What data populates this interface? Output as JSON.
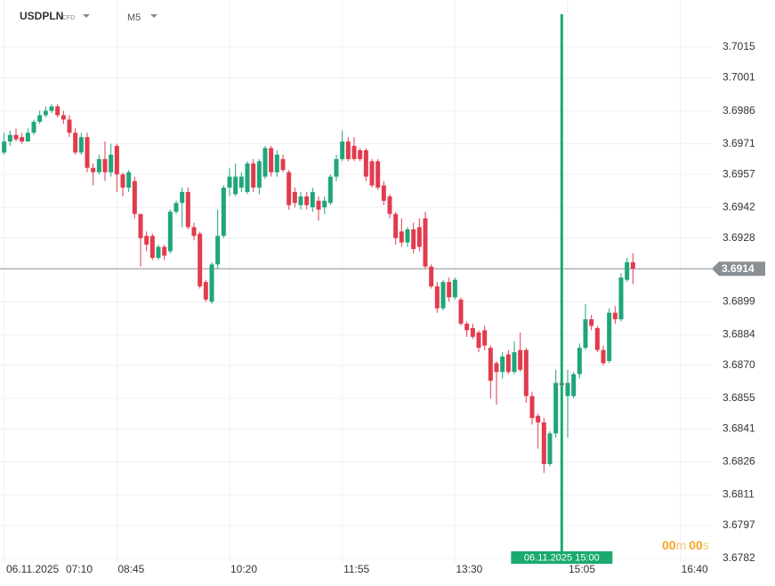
{
  "chart_data": {
    "type": "candlestick",
    "symbol": "USDPLN",
    "instrument_type": "CFD",
    "timeframe": "M5",
    "date_label": "06.11.2025",
    "x": [
      "07:10",
      "07:15",
      "07:20",
      "07:25",
      "07:30",
      "07:35",
      "07:40",
      "07:45",
      "07:50",
      "07:55",
      "08:00",
      "08:05",
      "08:10",
      "08:15",
      "08:20",
      "08:25",
      "08:30",
      "08:35",
      "08:40",
      "08:45",
      "08:50",
      "08:55",
      "09:00",
      "09:05",
      "09:10",
      "09:15",
      "09:20",
      "09:25",
      "09:30",
      "09:35",
      "09:40",
      "09:45",
      "09:50",
      "09:55",
      "10:00",
      "10:05",
      "10:10",
      "10:15",
      "10:20",
      "10:25",
      "10:30",
      "10:35",
      "10:40",
      "10:45",
      "10:50",
      "10:55",
      "11:00",
      "11:05",
      "11:10",
      "11:15",
      "11:20",
      "11:25",
      "11:30",
      "11:35",
      "11:40",
      "11:45",
      "11:50",
      "11:55",
      "12:00",
      "12:05",
      "12:10",
      "12:15",
      "12:20",
      "12:25",
      "12:30",
      "12:35",
      "12:40",
      "12:45",
      "12:50",
      "12:55",
      "13:00",
      "13:05",
      "13:10",
      "13:15",
      "13:20",
      "13:25",
      "13:30",
      "13:35",
      "13:40",
      "13:45",
      "13:50",
      "13:55",
      "14:00",
      "14:05",
      "14:10",
      "14:15",
      "14:20",
      "14:25",
      "14:30",
      "14:35",
      "14:40",
      "14:45",
      "14:50",
      "14:55",
      "15:00",
      "15:05",
      "15:10",
      "15:15",
      "15:20",
      "15:25",
      "15:30",
      "15:35",
      "15:40",
      "15:45",
      "15:50",
      "15:55",
      "16:00"
    ],
    "open": [
      3.6967,
      3.6972,
      3.6975,
      3.6974,
      3.6972,
      3.6976,
      3.6981,
      3.6984,
      3.6986,
      3.6988,
      3.6984,
      3.6982,
      3.6976,
      3.6967,
      3.6974,
      3.696,
      3.6958,
      3.6964,
      3.6958,
      3.697,
      3.6957,
      3.6951,
      3.6954,
      3.6939,
      3.6929,
      3.6929,
      3.6919,
      3.6924,
      3.6922,
      3.694,
      3.6944,
      3.6949,
      3.6933,
      3.693,
      3.6908,
      3.6899,
      3.6916,
      3.6929,
      3.6951,
      3.6948,
      3.6951,
      3.6949,
      3.6962,
      3.6951,
      3.6956,
      3.6969,
      3.6958,
      3.6964,
      3.6958,
      3.6949,
      3.6943,
      3.6947,
      3.6942,
      3.6945,
      3.6942,
      3.6944,
      3.6956,
      3.6964,
      3.6972,
      3.697,
      3.6968,
      3.6968,
      3.6963,
      3.6963,
      3.6952,
      3.6947,
      3.6939,
      3.6931,
      3.6926,
      3.6932,
      3.6933,
      3.6937,
      3.6915,
      3.6906,
      3.6896,
      3.6908,
      3.6901,
      3.69,
      3.6889,
      3.6887,
      3.6885,
      3.6886,
      3.6878,
      3.6871,
      3.6867,
      3.6875,
      3.6867,
      3.6877,
      3.6877,
      3.6856,
      3.6847,
      3.6844,
      3.6825,
      3.6839,
      3.6862,
      3.6856,
      3.6856,
      3.6866,
      3.6878,
      3.6891,
      3.6887,
      3.6877,
      3.6872,
      3.6894,
      3.6891,
      3.6909,
      3.6917
    ],
    "high": [
      3.6976,
      3.6977,
      3.6978,
      3.6976,
      3.6978,
      3.6982,
      3.6986,
      3.6988,
      3.6989,
      3.6989,
      3.6986,
      3.6984,
      3.6978,
      3.6976,
      3.6976,
      3.6962,
      3.6966,
      3.6972,
      3.6971,
      3.6971,
      3.6958,
      3.6959,
      3.6956,
      3.6939,
      3.6931,
      3.693,
      3.6925,
      3.6925,
      3.6941,
      3.6945,
      3.6951,
      3.6951,
      3.6935,
      3.6931,
      3.6909,
      3.6917,
      3.6941,
      3.6952,
      3.696,
      3.6962,
      3.6958,
      3.6963,
      3.6964,
      3.6964,
      3.697,
      3.697,
      3.6968,
      3.6966,
      3.6959,
      3.6951,
      3.6949,
      3.6949,
      3.6951,
      3.6947,
      3.6947,
      3.6957,
      3.6966,
      3.6977,
      3.6974,
      3.6974,
      3.6969,
      3.6969,
      3.6964,
      3.6964,
      3.6954,
      3.6948,
      3.694,
      3.6937,
      3.6933,
      3.6935,
      3.6937,
      3.694,
      3.6916,
      3.6908,
      3.6909,
      3.691,
      3.691,
      3.6901,
      3.689,
      3.6889,
      3.6886,
      3.6888,
      3.6879,
      3.6872,
      3.6876,
      3.6877,
      3.6881,
      3.6885,
      3.6878,
      3.6858,
      3.6848,
      3.6846,
      3.684,
      3.6868,
      3.6863,
      3.6868,
      3.6867,
      3.688,
      3.6898,
      3.6893,
      3.6888,
      3.6879,
      3.6896,
      3.6897,
      3.6912,
      3.6919,
      3.6921
    ],
    "low": [
      3.6966,
      3.697,
      3.6972,
      3.6971,
      3.6972,
      3.6975,
      3.698,
      3.6983,
      3.6985,
      3.6983,
      3.698,
      3.6974,
      3.6966,
      3.6966,
      3.6958,
      3.6952,
      3.6957,
      3.6954,
      3.6956,
      3.6949,
      3.6947,
      3.6949,
      3.6937,
      3.6915,
      3.6922,
      3.6918,
      3.6918,
      3.6918,
      3.6921,
      3.6939,
      3.6933,
      3.6932,
      3.6927,
      3.6905,
      3.6899,
      3.6898,
      3.6914,
      3.6928,
      3.6947,
      3.6947,
      3.6949,
      3.6948,
      3.6949,
      3.6948,
      3.6955,
      3.6956,
      3.6956,
      3.6958,
      3.6941,
      3.6942,
      3.6941,
      3.6941,
      3.694,
      3.6936,
      3.6939,
      3.6943,
      3.6954,
      3.6963,
      3.6963,
      3.6963,
      3.6963,
      3.6954,
      3.6951,
      3.695,
      3.6943,
      3.6937,
      3.6925,
      3.6924,
      3.6924,
      3.6921,
      3.6922,
      3.6914,
      3.6905,
      3.6894,
      3.6895,
      3.6899,
      3.69,
      3.6888,
      3.6883,
      3.6882,
      3.6876,
      3.6877,
      3.6855,
      3.6852,
      3.6864,
      3.6866,
      3.6866,
      3.6867,
      3.6853,
      3.6843,
      3.6832,
      3.6821,
      3.6824,
      3.6837,
      3.686,
      3.6837,
      3.6855,
      3.6864,
      3.6877,
      3.6886,
      3.6876,
      3.687,
      3.6871,
      3.6889,
      3.689,
      3.6908,
      3.6907
    ],
    "close": [
      3.6972,
      3.6975,
      3.6973,
      3.6972,
      3.6976,
      3.6981,
      3.6984,
      3.6986,
      3.6988,
      3.6984,
      3.6982,
      3.6976,
      3.6967,
      3.6974,
      3.696,
      3.6958,
      3.6964,
      3.6958,
      3.6966,
      3.6957,
      3.6951,
      3.6958,
      3.6939,
      3.6928,
      3.6925,
      3.6919,
      3.6924,
      3.692,
      3.694,
      3.6944,
      3.6949,
      3.6933,
      3.6929,
      3.6906,
      3.69,
      3.6916,
      3.6929,
      3.6951,
      3.6956,
      3.6956,
      3.6956,
      3.6962,
      3.6951,
      3.6963,
      3.6969,
      3.6958,
      3.6966,
      3.6959,
      3.6943,
      3.6944,
      3.6947,
      3.6943,
      3.6949,
      3.6941,
      3.6945,
      3.6956,
      3.6964,
      3.6972,
      3.6964,
      3.6964,
      3.6964,
      3.6956,
      3.6952,
      3.6951,
      3.6945,
      3.6939,
      3.6928,
      3.6926,
      3.6932,
      3.6923,
      3.6924,
      3.6915,
      3.6906,
      3.6896,
      3.6908,
      3.6901,
      3.6909,
      3.6889,
      3.6886,
      3.6883,
      3.6878,
      3.6879,
      3.6863,
      3.6867,
      3.6874,
      3.6867,
      3.6876,
      3.6868,
      3.6856,
      3.6846,
      3.6844,
      3.6825,
      3.6839,
      3.6862,
      3.6861,
      3.6862,
      3.6866,
      3.6878,
      3.6891,
      3.6888,
      3.6877,
      3.6871,
      3.6894,
      3.6891,
      3.691,
      3.6917,
      3.6914
    ],
    "up_color": "#1fa67a",
    "down_color": "#e23b4e",
    "xlim": [
      "07:05",
      "17:05"
    ],
    "xticks": [
      "07:10",
      "08:45",
      "10:20",
      "11:55",
      "13:30",
      "15:05",
      "16:40"
    ],
    "ylim": [
      3.678,
      3.703
    ],
    "yticks": [
      3.7015,
      3.7001,
      3.6986,
      3.6971,
      3.6957,
      3.6942,
      3.6928,
      3.6899,
      3.6884,
      {
        "value": 3.687,
        "label": "3.6870"
      },
      3.6855,
      3.6841,
      3.6826,
      3.6811,
      3.6797,
      3.6782
    ],
    "grid": true,
    "current_price": 3.6914,
    "crosshair": {
      "x": "15:00",
      "label": "06.11.2025 15:00",
      "color": "#1aaa6e"
    },
    "countdown": {
      "minutes": "00",
      "minutes_unit": "m",
      "seconds": "00",
      "seconds_unit": "s"
    }
  }
}
